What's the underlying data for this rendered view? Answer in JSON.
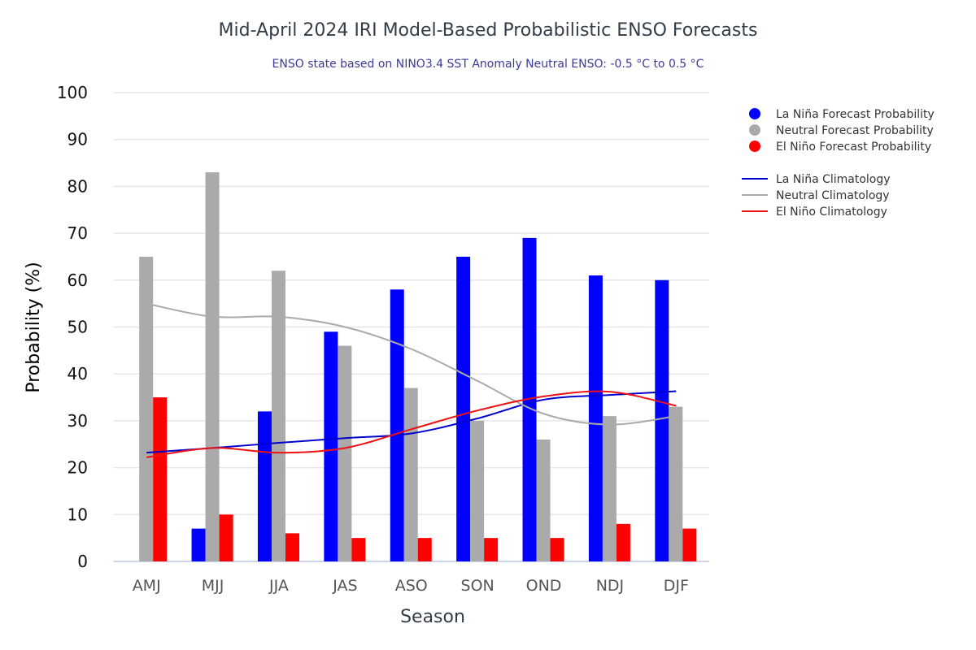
{
  "chart_data": {
    "type": "bar",
    "title": "Mid-April 2024 IRI Model-Based Probabilistic ENSO Forecasts",
    "subtitle": "ENSO state based on NINO3.4 SST Anomaly Neutral ENSO: -0.5 °C to 0.5 °C",
    "xlabel": "Season",
    "ylabel": "Probability (%)",
    "ylim": [
      0,
      100
    ],
    "yticks": [
      0,
      10,
      20,
      30,
      40,
      50,
      60,
      70,
      80,
      90,
      100
    ],
    "grid": true,
    "legend_position": "right",
    "categories": [
      "AMJ",
      "MJJ",
      "JJA",
      "JAS",
      "ASO",
      "SON",
      "OND",
      "NDJ",
      "DJF"
    ],
    "series": [
      {
        "name": "La Niña Forecast Probability",
        "kind": "bar",
        "color": "#0000ff",
        "values": [
          0,
          7,
          32,
          49,
          58,
          65,
          69,
          61,
          60
        ]
      },
      {
        "name": "Neutral Forecast Probability",
        "kind": "bar",
        "color": "#aaaaaa",
        "values": [
          65,
          83,
          62,
          46,
          37,
          30,
          26,
          31,
          33
        ]
      },
      {
        "name": "El Niño Forecast Probability",
        "kind": "bar",
        "color": "#ff0000",
        "values": [
          35,
          10,
          6,
          5,
          5,
          5,
          5,
          8,
          7
        ]
      },
      {
        "name": "La Niña Climatology",
        "kind": "line",
        "color": "#0000cc",
        "values": [
          23.2,
          24.2,
          25.3,
          26.3,
          27.3,
          30.5,
          34.5,
          35.5,
          36.3
        ]
      },
      {
        "name": "Neutral Climatology",
        "kind": "line",
        "color": "#aaaaaa",
        "values": [
          55,
          52.2,
          52.2,
          50,
          45.3,
          38.5,
          31.5,
          29.2,
          31
        ]
      },
      {
        "name": "El Niño Climatology",
        "kind": "line",
        "color": "#ee1111",
        "values": [
          22.2,
          24.2,
          23.2,
          24.2,
          28.2,
          32.2,
          35.2,
          36.2,
          33.2
        ]
      }
    ]
  }
}
